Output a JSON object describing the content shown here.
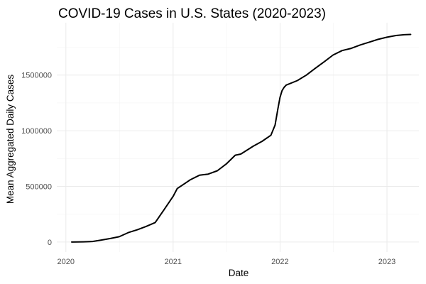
{
  "chart_data": {
    "type": "line",
    "title": "COVID-19 Cases in U.S. States (2020-2023)",
    "xlabel": "Date",
    "ylabel": "Mean Aggregated Daily Cases",
    "x_ticks": [
      "2020",
      "2021",
      "2022",
      "2023"
    ],
    "y_ticks": [
      "0",
      "500000",
      "1000000",
      "1500000"
    ],
    "x_range": [
      "2019-12-01",
      "2023-04-20"
    ],
    "ylim": [
      -90000,
      1970000
    ],
    "grid": true,
    "line_color": "#000000",
    "series": [
      {
        "x": [
          "2020-01-21",
          "2020-03-01",
          "2020-04-01",
          "2020-05-01",
          "2020-06-01",
          "2020-07-01",
          "2020-08-01",
          "2020-09-01",
          "2020-10-01",
          "2020-11-01",
          "2020-12-01",
          "2021-01-01",
          "2021-01-15",
          "2021-02-01",
          "2021-03-01",
          "2021-04-01",
          "2021-05-01",
          "2021-06-01",
          "2021-07-01",
          "2021-08-01",
          "2021-08-20",
          "2021-09-01",
          "2021-10-01",
          "2021-11-01",
          "2021-12-01",
          "2021-12-15",
          "2021-12-25",
          "2022-01-01",
          "2022-01-08",
          "2022-01-15",
          "2022-01-22",
          "2022-02-01",
          "2022-03-01",
          "2022-04-01",
          "2022-05-01",
          "2022-06-01",
          "2022-07-01",
          "2022-08-01",
          "2022-09-01",
          "2022-10-01",
          "2022-11-01",
          "2022-12-01",
          "2023-01-01",
          "2023-02-01",
          "2023-03-01",
          "2023-03-23"
        ],
        "y": [
          0,
          2000,
          5000,
          18000,
          32000,
          48000,
          85000,
          110000,
          140000,
          175000,
          290000,
          410000,
          480000,
          510000,
          560000,
          600000,
          610000,
          640000,
          700000,
          780000,
          790000,
          810000,
          860000,
          905000,
          960000,
          1050000,
          1200000,
          1300000,
          1360000,
          1390000,
          1410000,
          1420000,
          1450000,
          1500000,
          1560000,
          1620000,
          1680000,
          1720000,
          1740000,
          1770000,
          1795000,
          1820000,
          1840000,
          1855000,
          1862000,
          1865000
        ]
      }
    ]
  }
}
